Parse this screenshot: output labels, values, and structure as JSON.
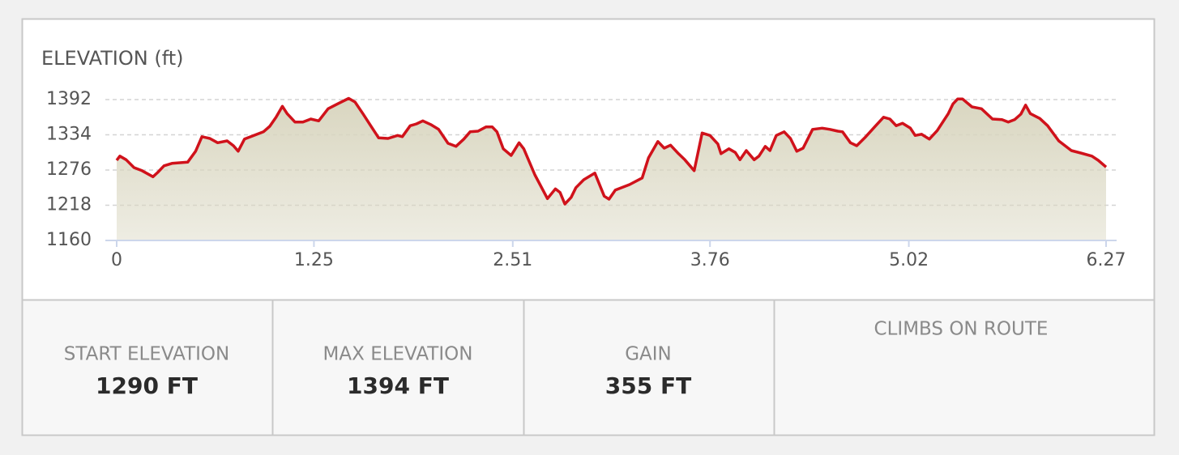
{
  "chart_data": {
    "type": "area",
    "title": "ELEVATION (ft)",
    "x": [
      0,
      0.02,
      0.06,
      0.11,
      0.16,
      0.23,
      0.26,
      0.3,
      0.35,
      0.45,
      0.5,
      0.54,
      0.59,
      0.64,
      0.7,
      0.74,
      0.77,
      0.81,
      0.86,
      0.93,
      0.97,
      1.01,
      1.05,
      1.08,
      1.13,
      1.18,
      1.23,
      1.28,
      1.34,
      1.4,
      1.47,
      1.51,
      1.56,
      1.61,
      1.66,
      1.72,
      1.78,
      1.81,
      1.86,
      1.9,
      1.94,
      1.99,
      2.04,
      2.1,
      2.15,
      2.2,
      2.24,
      2.29,
      2.34,
      2.38,
      2.41,
      2.45,
      2.5,
      2.55,
      2.58,
      2.65,
      2.73,
      2.78,
      2.81,
      2.84,
      2.88,
      2.91,
      2.96,
      3.03,
      3.09,
      3.12,
      3.16,
      3.25,
      3.33,
      3.37,
      3.43,
      3.47,
      3.51,
      3.56,
      3.6,
      3.66,
      3.71,
      3.76,
      3.81,
      3.83,
      3.88,
      3.92,
      3.95,
      3.99,
      4.04,
      4.07,
      4.11,
      4.14,
      4.18,
      4.23,
      4.27,
      4.31,
      4.35,
      4.41,
      4.47,
      4.52,
      4.57,
      4.6,
      4.65,
      4.69,
      4.74,
      4.81,
      4.86,
      4.9,
      4.94,
      4.98,
      5.03,
      5.06,
      5.1,
      5.15,
      5.2,
      5.27,
      5.3,
      5.33,
      5.36,
      5.42,
      5.48,
      5.55,
      5.61,
      5.65,
      5.69,
      5.73,
      5.76,
      5.79,
      5.85,
      5.9,
      5.97,
      6.01,
      6.05,
      6.11,
      6.18,
      6.22,
      6.27
    ],
    "values": [
      1292,
      1299,
      1293,
      1280,
      1275,
      1265,
      1272,
      1283,
      1287,
      1289,
      1307,
      1331,
      1328,
      1321,
      1324,
      1316,
      1307,
      1327,
      1332,
      1339,
      1348,
      1363,
      1381,
      1369,
      1355,
      1355,
      1360,
      1357,
      1377,
      1385,
      1394,
      1388,
      1369,
      1349,
      1329,
      1328,
      1333,
      1331,
      1349,
      1352,
      1357,
      1351,
      1343,
      1320,
      1315,
      1327,
      1339,
      1340,
      1347,
      1347,
      1339,
      1311,
      1300,
      1321,
      1311,
      1268,
      1229,
      1245,
      1239,
      1220,
      1231,
      1247,
      1260,
      1271,
      1233,
      1228,
      1243,
      1252,
      1263,
      1296,
      1323,
      1312,
      1317,
      1303,
      1293,
      1275,
      1337,
      1333,
      1319,
      1303,
      1311,
      1305,
      1293,
      1308,
      1293,
      1299,
      1315,
      1308,
      1333,
      1339,
      1328,
      1307,
      1312,
      1343,
      1345,
      1343,
      1340,
      1339,
      1321,
      1316,
      1329,
      1349,
      1363,
      1360,
      1349,
      1353,
      1345,
      1333,
      1335,
      1327,
      1341,
      1369,
      1385,
      1393,
      1393,
      1380,
      1377,
      1360,
      1359,
      1355,
      1359,
      1368,
      1383,
      1369,
      1361,
      1349,
      1324,
      1316,
      1308,
      1304,
      1299,
      1292,
      1281
    ],
    "color": "#d0121b",
    "fill_color": "#d9d6c0",
    "xlim": [
      0,
      6.27
    ],
    "xticks": [
      0,
      1.25,
      2.51,
      3.76,
      5.02,
      6.27
    ],
    "ylim": [
      1160,
      1392
    ],
    "yticks": [
      1160,
      1218,
      1276,
      1334,
      1392
    ],
    "grid": true
  },
  "stats": [
    {
      "label": "START ELEVATION",
      "value": "1290 FT"
    },
    {
      "label": "MAX ELEVATION",
      "value": "1394 FT"
    },
    {
      "label": "GAIN",
      "value": "355 FT"
    }
  ],
  "climbs_title": "CLIMBS ON ROUTE"
}
